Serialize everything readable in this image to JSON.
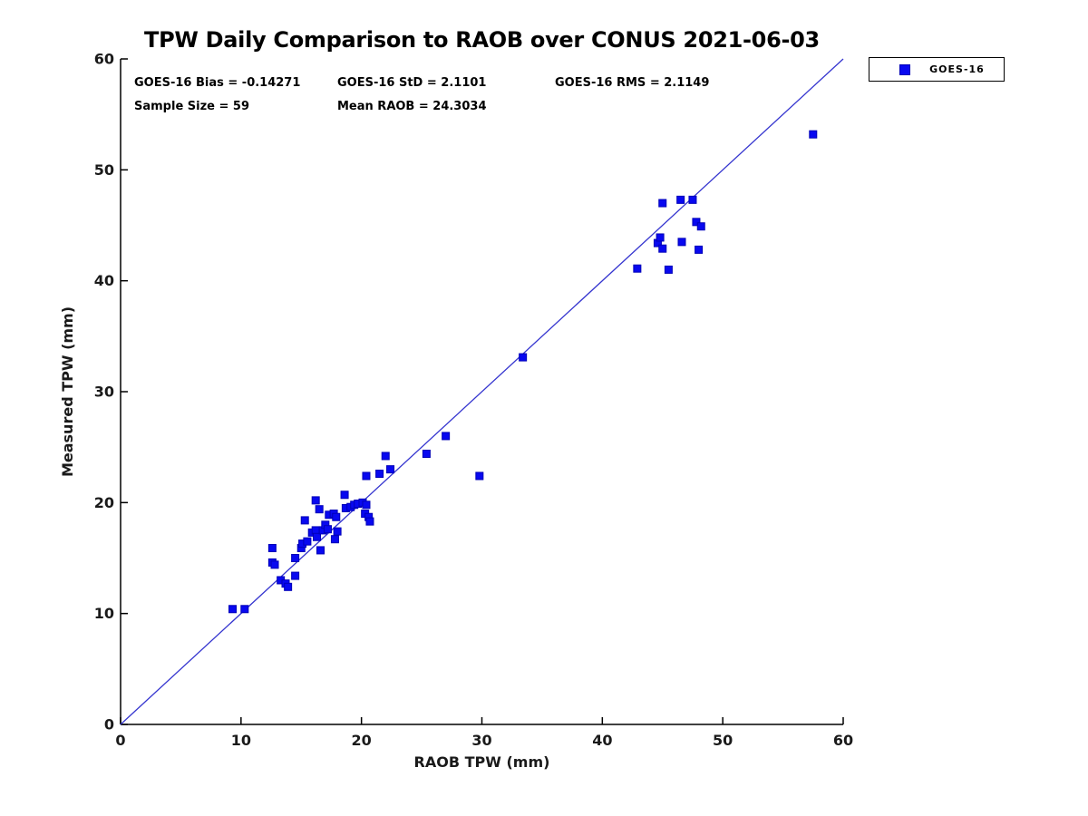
{
  "title": "TPW Daily Comparison to RAOB over CONUS 2021-06-03",
  "stats": {
    "bias": "GOES-16 Bias = -0.14271",
    "std": "GOES-16 StD = 2.1101",
    "rms": "GOES-16 RMS = 2.1149",
    "sample_size": "Sample Size = 59",
    "mean_raob": "Mean RAOB = 24.3034"
  },
  "legend": {
    "items": [
      {
        "label": "GOES-16",
        "marker": "square",
        "marker_color": "#0808f0"
      }
    ],
    "position": "top-right-outside"
  },
  "colors": {
    "marker_fill": "#0808f0",
    "marker_edge": "#0000b8",
    "identity_line": "#3535cf",
    "axis": "#000000",
    "tick_label": "#1a1a1a",
    "background": "#ffffff"
  },
  "chart_data": {
    "type": "scatter",
    "title": "TPW Daily Comparison to RAOB over CONUS 2021-06-03",
    "xlabel": "RAOB TPW (mm)",
    "ylabel": "Measured TPW (mm)",
    "xlim": [
      0,
      60
    ],
    "ylim": [
      0,
      60
    ],
    "xticks": [
      0,
      10,
      20,
      30,
      40,
      50,
      60
    ],
    "yticks": [
      0,
      10,
      20,
      30,
      40,
      50,
      60
    ],
    "grid": false,
    "legend_position": "top-right-outside",
    "reference_line": {
      "meaning": "1:1 identity line",
      "from": [
        0,
        0
      ],
      "to": [
        60,
        60
      ]
    },
    "series": [
      {
        "name": "GOES-16",
        "marker": "square",
        "points": [
          [
            9.3,
            10.4
          ],
          [
            10.3,
            10.4
          ],
          [
            12.6,
            15.9
          ],
          [
            12.6,
            14.6
          ],
          [
            12.8,
            14.4
          ],
          [
            13.3,
            13.0
          ],
          [
            13.7,
            12.7
          ],
          [
            13.9,
            12.4
          ],
          [
            14.5,
            13.4
          ],
          [
            14.5,
            15.0
          ],
          [
            15.0,
            15.9
          ],
          [
            15.1,
            16.3
          ],
          [
            15.5,
            16.5
          ],
          [
            15.3,
            18.4
          ],
          [
            15.9,
            17.3
          ],
          [
            16.2,
            17.5
          ],
          [
            16.3,
            16.9
          ],
          [
            16.2,
            20.2
          ],
          [
            16.5,
            19.4
          ],
          [
            16.6,
            15.7
          ],
          [
            16.8,
            17.5
          ],
          [
            17.0,
            18.0
          ],
          [
            17.2,
            17.6
          ],
          [
            17.3,
            18.9
          ],
          [
            17.7,
            19.0
          ],
          [
            17.8,
            16.7
          ],
          [
            17.9,
            18.7
          ],
          [
            18.0,
            17.4
          ],
          [
            18.6,
            20.7
          ],
          [
            18.7,
            19.5
          ],
          [
            19.1,
            19.6
          ],
          [
            19.4,
            19.8
          ],
          [
            19.7,
            19.9
          ],
          [
            20.1,
            20.0
          ],
          [
            20.4,
            19.8
          ],
          [
            20.3,
            19.0
          ],
          [
            20.6,
            18.7
          ],
          [
            20.7,
            18.3
          ],
          [
            20.4,
            22.4
          ],
          [
            21.5,
            22.6
          ],
          [
            22.0,
            24.2
          ],
          [
            22.4,
            23.0
          ],
          [
            25.4,
            24.4
          ],
          [
            27.0,
            26.0
          ],
          [
            29.8,
            22.4
          ],
          [
            33.4,
            33.1
          ],
          [
            42.9,
            41.1
          ],
          [
            44.6,
            43.4
          ],
          [
            44.8,
            43.9
          ],
          [
            45.0,
            42.9
          ],
          [
            45.0,
            47.0
          ],
          [
            45.5,
            41.0
          ],
          [
            46.5,
            47.3
          ],
          [
            46.6,
            43.5
          ],
          [
            47.5,
            47.3
          ],
          [
            47.8,
            45.3
          ],
          [
            48.0,
            42.8
          ],
          [
            48.2,
            44.9
          ],
          [
            57.5,
            53.2
          ]
        ]
      }
    ]
  }
}
